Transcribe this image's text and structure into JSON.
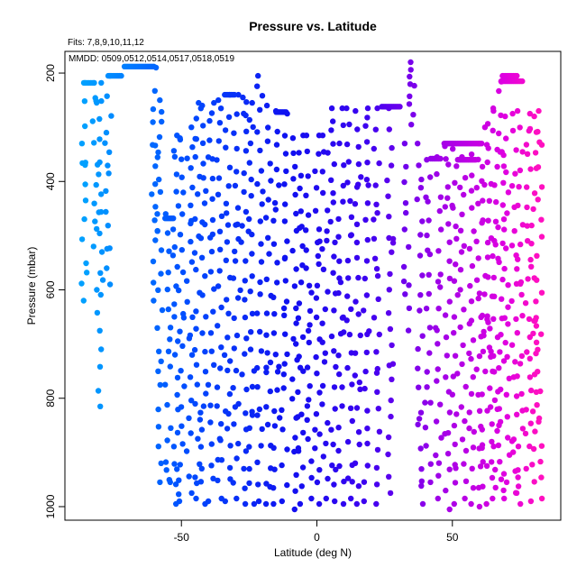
{
  "chart_data": {
    "type": "scatter",
    "title": "Pressure vs. Latitude",
    "subtitle": "Fits: 7,8,9,10,11,12",
    "legend_text": "MMDD: 0509,0512,0514,0517,0518,0519",
    "xlabel": "Latitude (deg N)",
    "ylabel": "Pressure (mbar)",
    "xlim": [
      -93,
      90
    ],
    "ylim": [
      1025,
      160
    ],
    "x_ticks": [
      -50,
      0,
      50
    ],
    "y_ticks": [
      200,
      400,
      600,
      800,
      1000
    ],
    "y_axis_inverted": true,
    "grid": false,
    "color_scale": {
      "description": "point color varies with latitude (light blue at south, blue, purple, magenta at north)",
      "stops": [
        {
          "lat": -85,
          "color": "#00a0ff"
        },
        {
          "lat": -50,
          "color": "#0050ff"
        },
        {
          "lat": -10,
          "color": "#1010f0"
        },
        {
          "lat": 20,
          "color": "#4000f0"
        },
        {
          "lat": 45,
          "color": "#a000e8"
        },
        {
          "lat": 70,
          "color": "#e000e0"
        },
        {
          "lat": 82,
          "color": "#ff10c0"
        }
      ]
    },
    "profile_points_note": "vertical sounding profiles; each has points spread from its top pressure down to ~1000 mbar",
    "profiles": [
      {
        "lat": -86,
        "top": 218,
        "bottom": 620
      },
      {
        "lat": -82,
        "top": 218,
        "bottom": 520
      },
      {
        "lat": -80,
        "top": 218,
        "bottom": 815
      },
      {
        "lat": -77,
        "top": 205,
        "bottom": 590
      },
      {
        "lat": -60,
        "top": 190,
        "bottom": 620
      },
      {
        "lat": -58,
        "top": 250,
        "bottom": 955
      },
      {
        "lat": -55,
        "top": 460,
        "bottom": 955
      },
      {
        "lat": -52,
        "top": 315,
        "bottom": 995
      },
      {
        "lat": -50,
        "top": 320,
        "bottom": 990
      },
      {
        "lat": -47,
        "top": 300,
        "bottom": 975
      },
      {
        "lat": -44,
        "top": 255,
        "bottom": 985
      },
      {
        "lat": -42,
        "top": 260,
        "bottom": 995
      },
      {
        "lat": -39,
        "top": 255,
        "bottom": 990
      },
      {
        "lat": -36,
        "top": 250,
        "bottom": 985
      },
      {
        "lat": -33,
        "top": 240,
        "bottom": 990
      },
      {
        "lat": -30,
        "top": 240,
        "bottom": 985
      },
      {
        "lat": -27,
        "top": 245,
        "bottom": 995
      },
      {
        "lat": -24,
        "top": 255,
        "bottom": 995
      },
      {
        "lat": -21,
        "top": 205,
        "bottom": 990
      },
      {
        "lat": -18,
        "top": 260,
        "bottom": 995
      },
      {
        "lat": -15,
        "top": 270,
        "bottom": 995
      },
      {
        "lat": -12,
        "top": 275,
        "bottom": 990
      },
      {
        "lat": -8,
        "top": 320,
        "bottom": 1005
      },
      {
        "lat": -6,
        "top": 315,
        "bottom": 995
      },
      {
        "lat": -3,
        "top": 315,
        "bottom": 985
      },
      {
        "lat": 0,
        "top": 315,
        "bottom": 995
      },
      {
        "lat": 3,
        "top": 315,
        "bottom": 985
      },
      {
        "lat": 6,
        "top": 265,
        "bottom": 990
      },
      {
        "lat": 9,
        "top": 265,
        "bottom": 995
      },
      {
        "lat": 12,
        "top": 265,
        "bottom": 985
      },
      {
        "lat": 15,
        "top": 270,
        "bottom": 995
      },
      {
        "lat": 18,
        "top": 265,
        "bottom": 990
      },
      {
        "lat": 22,
        "top": 265,
        "bottom": 995
      },
      {
        "lat": 27,
        "top": 265,
        "bottom": 975
      },
      {
        "lat": 33,
        "top": 330,
        "bottom": 675
      },
      {
        "lat": 35,
        "top": 180,
        "bottom": 295
      },
      {
        "lat": 38,
        "top": 330,
        "bottom": 995
      },
      {
        "lat": 41,
        "top": 360,
        "bottom": 955
      },
      {
        "lat": 45,
        "top": 355,
        "bottom": 985
      },
      {
        "lat": 48,
        "top": 335,
        "bottom": 1005
      },
      {
        "lat": 51,
        "top": 340,
        "bottom": 995
      },
      {
        "lat": 54,
        "top": 355,
        "bottom": 985
      },
      {
        "lat": 57,
        "top": 350,
        "bottom": 995
      },
      {
        "lat": 60,
        "top": 330,
        "bottom": 1000
      },
      {
        "lat": 62,
        "top": 300,
        "bottom": 995
      },
      {
        "lat": 64,
        "top": 265,
        "bottom": 985
      },
      {
        "lat": 66,
        "top": 270,
        "bottom": 965
      },
      {
        "lat": 68,
        "top": 205,
        "bottom": 985
      },
      {
        "lat": 70,
        "top": 280,
        "bottom": 970
      },
      {
        "lat": 73,
        "top": 275,
        "bottom": 975
      },
      {
        "lat": 75,
        "top": 270,
        "bottom": 995
      },
      {
        "lat": 78,
        "top": 275,
        "bottom": 930
      },
      {
        "lat": 80,
        "top": 280,
        "bottom": 990
      },
      {
        "lat": 82,
        "top": 270,
        "bottom": 985
      }
    ],
    "flat_segments": [
      {
        "lat_from": -86,
        "lat_to": -82,
        "pressure": 218
      },
      {
        "lat_from": -77,
        "lat_to": -72,
        "pressure": 205
      },
      {
        "lat_from": -71,
        "lat_to": -60,
        "pressure": 188
      },
      {
        "lat_from": -56,
        "lat_to": -53,
        "pressure": 468
      },
      {
        "lat_from": -34,
        "lat_to": -30,
        "pressure": 240
      },
      {
        "lat_from": -15,
        "lat_to": -11,
        "pressure": 272
      },
      {
        "lat_from": 24,
        "lat_to": 31,
        "pressure": 262
      },
      {
        "lat_from": 42,
        "lat_to": 46,
        "pressure": 358
      },
      {
        "lat_from": 47,
        "lat_to": 61,
        "pressure": 330
      },
      {
        "lat_from": 52,
        "lat_to": 59,
        "pressure": 360
      },
      {
        "lat_from": 68,
        "lat_to": 76,
        "pressure": 215
      },
      {
        "lat_from": 69,
        "lat_to": 74,
        "pressure": 205
      }
    ]
  }
}
